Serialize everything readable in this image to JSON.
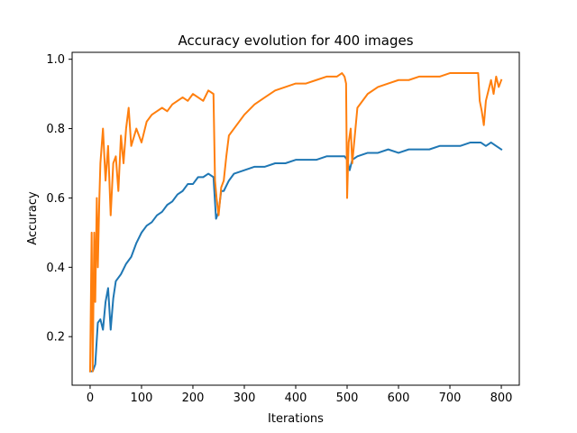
{
  "chart_data": {
    "type": "line",
    "title": "Accuracy evolution for 400 images",
    "xlabel": "Iterations",
    "ylabel": "Accuracy",
    "xlim": [
      -35,
      835
    ],
    "ylim": [
      0.06,
      1.02
    ],
    "xticks": [
      0,
      100,
      200,
      300,
      400,
      500,
      600,
      700,
      800
    ],
    "yticks": [
      0.2,
      0.4,
      0.6,
      0.8,
      1.0
    ],
    "xtick_labels": [
      "0",
      "100",
      "200",
      "300",
      "400",
      "500",
      "600",
      "700",
      "800"
    ],
    "ytick_labels": [
      "0.2",
      "0.4",
      "0.6",
      "0.8",
      "1.0"
    ],
    "grid": false,
    "legend": null,
    "series": [
      {
        "color": "#1f77b4",
        "x": [
          0,
          5,
          10,
          15,
          20,
          25,
          30,
          35,
          40,
          45,
          50,
          60,
          70,
          80,
          90,
          100,
          110,
          120,
          130,
          140,
          150,
          160,
          170,
          180,
          190,
          200,
          210,
          220,
          230,
          240,
          245,
          250,
          255,
          260,
          270,
          280,
          300,
          320,
          340,
          360,
          380,
          400,
          420,
          440,
          460,
          480,
          495,
          500,
          505,
          510,
          520,
          540,
          560,
          580,
          600,
          620,
          640,
          660,
          680,
          700,
          720,
          740,
          760,
          770,
          780,
          790,
          800
        ],
        "y": [
          0.1,
          0.1,
          0.12,
          0.24,
          0.25,
          0.22,
          0.3,
          0.34,
          0.22,
          0.31,
          0.36,
          0.38,
          0.41,
          0.43,
          0.47,
          0.5,
          0.52,
          0.53,
          0.55,
          0.56,
          0.58,
          0.59,
          0.61,
          0.62,
          0.64,
          0.64,
          0.66,
          0.66,
          0.67,
          0.66,
          0.54,
          0.56,
          0.62,
          0.62,
          0.65,
          0.67,
          0.68,
          0.69,
          0.69,
          0.7,
          0.7,
          0.71,
          0.71,
          0.71,
          0.72,
          0.72,
          0.72,
          0.71,
          0.68,
          0.71,
          0.72,
          0.73,
          0.73,
          0.74,
          0.73,
          0.74,
          0.74,
          0.74,
          0.75,
          0.75,
          0.75,
          0.76,
          0.76,
          0.75,
          0.76,
          0.75,
          0.74
        ]
      },
      {
        "color": "#ff7f0e",
        "x": [
          0,
          3,
          5,
          8,
          10,
          13,
          15,
          18,
          20,
          25,
          30,
          35,
          40,
          45,
          50,
          55,
          60,
          65,
          70,
          75,
          80,
          90,
          100,
          110,
          120,
          130,
          140,
          150,
          160,
          170,
          180,
          190,
          200,
          210,
          220,
          230,
          240,
          243,
          246,
          250,
          255,
          260,
          265,
          270,
          280,
          300,
          320,
          340,
          360,
          380,
          400,
          420,
          440,
          460,
          480,
          490,
          495,
          498,
          500,
          503,
          507,
          510,
          515,
          520,
          540,
          560,
          580,
          600,
          620,
          640,
          660,
          680,
          700,
          720,
          740,
          755,
          758,
          762,
          766,
          770,
          775,
          780,
          785,
          790,
          795,
          800
        ],
        "y": [
          0.1,
          0.5,
          0.1,
          0.5,
          0.3,
          0.6,
          0.4,
          0.6,
          0.7,
          0.8,
          0.65,
          0.75,
          0.55,
          0.7,
          0.72,
          0.62,
          0.78,
          0.7,
          0.8,
          0.86,
          0.75,
          0.8,
          0.76,
          0.82,
          0.84,
          0.85,
          0.86,
          0.85,
          0.87,
          0.88,
          0.89,
          0.88,
          0.9,
          0.89,
          0.88,
          0.91,
          0.9,
          0.65,
          0.6,
          0.55,
          0.63,
          0.65,
          0.72,
          0.78,
          0.8,
          0.84,
          0.87,
          0.89,
          0.91,
          0.92,
          0.93,
          0.93,
          0.94,
          0.95,
          0.95,
          0.96,
          0.95,
          0.93,
          0.6,
          0.76,
          0.8,
          0.7,
          0.78,
          0.86,
          0.9,
          0.92,
          0.93,
          0.94,
          0.94,
          0.95,
          0.95,
          0.95,
          0.96,
          0.96,
          0.96,
          0.96,
          0.88,
          0.85,
          0.81,
          0.88,
          0.91,
          0.94,
          0.9,
          0.95,
          0.92,
          0.94
        ]
      }
    ]
  }
}
